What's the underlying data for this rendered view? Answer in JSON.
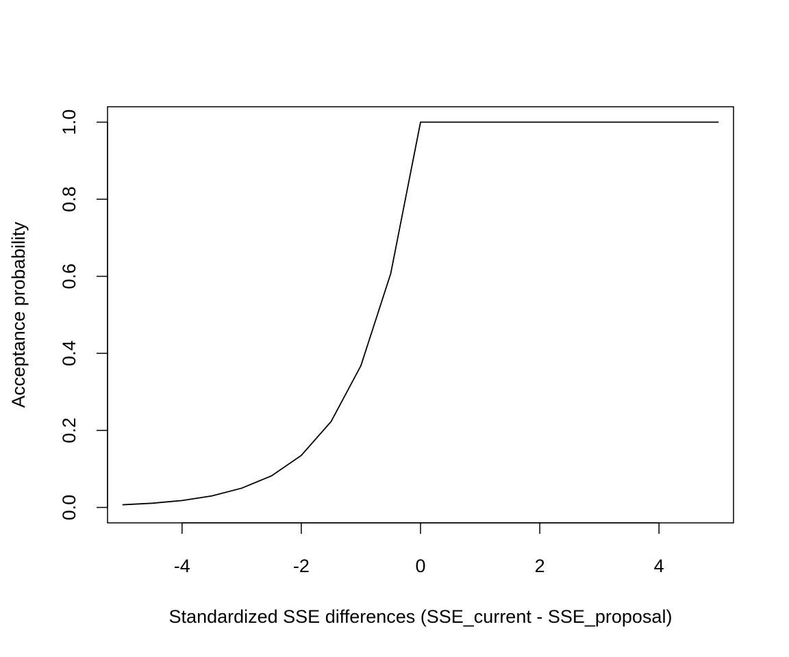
{
  "chart_data": {
    "type": "line",
    "title": "",
    "xlabel": "Standardized SSE differences (SSE_current - SSE_proposal)",
    "ylabel": "Acceptance probability",
    "xlim": [
      -5.25,
      5.25
    ],
    "ylim": [
      -0.04,
      1.04
    ],
    "x_ticks": [
      -4,
      -2,
      0,
      2,
      4
    ],
    "x_tick_labels": [
      "-4",
      "-2",
      "0",
      "2",
      "4"
    ],
    "y_ticks": [
      0.0,
      0.2,
      0.4,
      0.6,
      0.8,
      1.0
    ],
    "y_tick_labels": [
      "0.0",
      "0.2",
      "0.4",
      "0.6",
      "0.8",
      "1.0"
    ],
    "grid": false,
    "legend": "none",
    "line_color": "#000000",
    "series": [
      {
        "x": [
          -5.0,
          -4.5,
          -4.0,
          -3.5,
          -3.0,
          -2.5,
          -2.0,
          -1.5,
          -1.0,
          -0.5,
          0.0,
          0.5,
          1.0,
          1.5,
          2.0,
          2.5,
          3.0,
          3.5,
          4.0,
          4.5,
          5.0
        ],
        "y": [
          0.007,
          0.011,
          0.018,
          0.03,
          0.05,
          0.082,
          0.135,
          0.223,
          0.368,
          0.607,
          1.0,
          1.0,
          1.0,
          1.0,
          1.0,
          1.0,
          1.0,
          1.0,
          1.0,
          1.0,
          1.0
        ]
      }
    ]
  }
}
